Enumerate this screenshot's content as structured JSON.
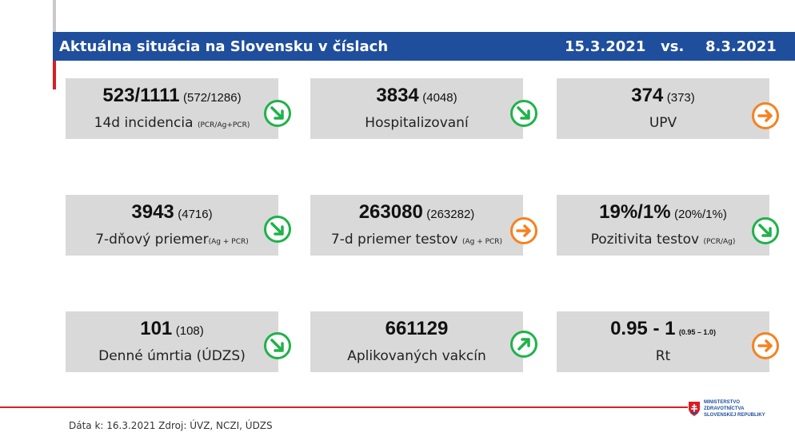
{
  "header": {
    "title": "Aktuálna situácia na Slovensku v číslach",
    "date_current": "15.3.2021",
    "vs": "vs.",
    "date_previous": "8.3.2021"
  },
  "cards": [
    {
      "value": "523/1111",
      "previous": "(572/1286)",
      "label": "14d incidencia",
      "label_note": "(PCR/Ag+PCR)",
      "trend": "down",
      "trend_color": "#1fb24a"
    },
    {
      "value": "3834",
      "previous": "(4048)",
      "label": "Hospitalizovaní",
      "label_note": "",
      "trend": "down",
      "trend_color": "#1fb24a"
    },
    {
      "value": "374",
      "previous": "(373)",
      "label": "UPV",
      "label_note": "",
      "trend": "flat",
      "trend_color": "#f58220"
    },
    {
      "value": "3943",
      "previous": "(4716)",
      "label": "7-dňový priemer",
      "label_note": "(Ag + PCR)",
      "trend": "down",
      "trend_color": "#1fb24a"
    },
    {
      "value": "263080",
      "previous": "(263282)",
      "label": "7-d priemer testov",
      "label_note": "(Ag + PCR)",
      "trend": "flat",
      "trend_color": "#f58220"
    },
    {
      "value": "19%/1%",
      "previous": "(20%/1%)",
      "label": "Pozitivita testov",
      "label_note": "(PCR/Ag)",
      "trend": "down",
      "trend_color": "#1fb24a"
    },
    {
      "value": "101",
      "previous": "(108)",
      "label": "Denné úmrtia (ÚDZS)",
      "label_note": "",
      "trend": "down",
      "trend_color": "#1fb24a"
    },
    {
      "value": "661129",
      "previous": "",
      "label": "Aplikovaných vakcín",
      "label_note": "",
      "trend": "up",
      "trend_color": "#1fb24a"
    },
    {
      "value": "0.95 - 1",
      "previous": "(0.95 – 1.0)",
      "label": "Rt",
      "label_note": "",
      "trend": "flat",
      "trend_color": "#f58220"
    }
  ],
  "footer": {
    "source": "Dáta k: 16.3.2021 Zdroj: ÚVZ, NCZI, ÚDZS"
  },
  "ministry": {
    "line1": "MINISTERSTVO",
    "line2": "ZDRAVOTNÍCTVA",
    "line3": "SLOVENSKEJ REPUBLIKY"
  }
}
